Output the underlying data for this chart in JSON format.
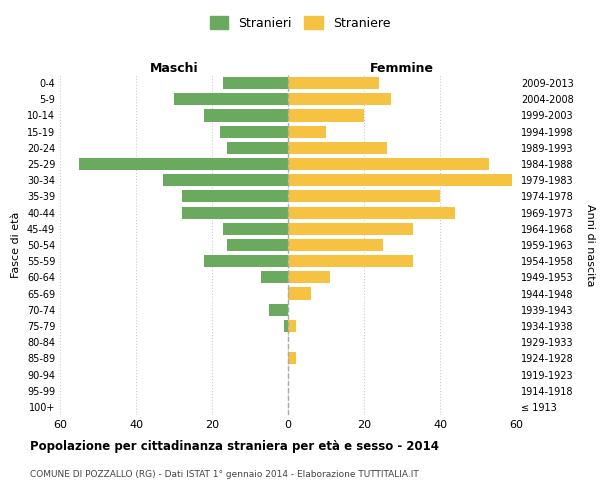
{
  "age_groups": [
    "100+",
    "95-99",
    "90-94",
    "85-89",
    "80-84",
    "75-79",
    "70-74",
    "65-69",
    "60-64",
    "55-59",
    "50-54",
    "45-49",
    "40-44",
    "35-39",
    "30-34",
    "25-29",
    "20-24",
    "15-19",
    "10-14",
    "5-9",
    "0-4"
  ],
  "birth_years": [
    "≤ 1913",
    "1914-1918",
    "1919-1923",
    "1924-1928",
    "1929-1933",
    "1934-1938",
    "1939-1943",
    "1944-1948",
    "1949-1953",
    "1954-1958",
    "1959-1963",
    "1964-1968",
    "1969-1973",
    "1974-1978",
    "1979-1983",
    "1984-1988",
    "1989-1993",
    "1994-1998",
    "1999-2003",
    "2004-2008",
    "2009-2013"
  ],
  "males": [
    0,
    0,
    0,
    0,
    0,
    1,
    5,
    0,
    7,
    22,
    16,
    17,
    28,
    28,
    33,
    55,
    16,
    18,
    22,
    30,
    17
  ],
  "females": [
    0,
    0,
    0,
    2,
    0,
    2,
    0,
    6,
    11,
    33,
    25,
    33,
    44,
    40,
    59,
    53,
    26,
    10,
    20,
    27,
    24
  ],
  "male_color": "#6aaa5f",
  "female_color": "#f5c242",
  "background_color": "#ffffff",
  "grid_color": "#cccccc",
  "title": "Popolazione per cittadinanza straniera per età e sesso - 2014",
  "subtitle": "COMUNE DI POZZALLO (RG) - Dati ISTAT 1° gennaio 2014 - Elaborazione TUTTITALIA.IT",
  "xlabel_left": "Maschi",
  "xlabel_right": "Femmine",
  "ylabel_left": "Fasce di età",
  "ylabel_right": "Anni di nascita",
  "legend_male": "Stranieri",
  "legend_female": "Straniere",
  "xlim": 60,
  "center_line_color": "#aaaaaa",
  "center_line_style": "--"
}
